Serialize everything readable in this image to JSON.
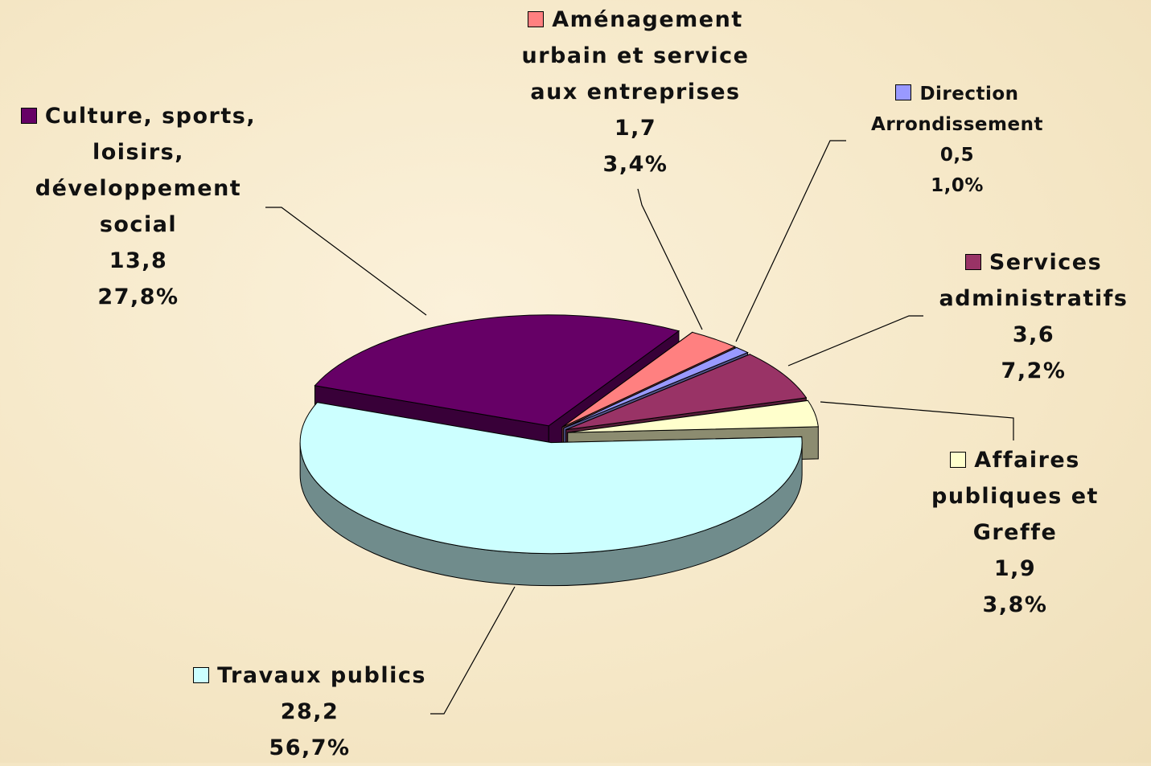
{
  "chart_data": {
    "type": "pie",
    "categories": [
      "Travaux publics",
      "Culture, sports, loisirs, développement social",
      "Aménagement urbain et service aux entreprises",
      "Direction Arrondissement",
      "Services administratifs",
      "Affaires publiques et Greffe"
    ],
    "values": [
      28.2,
      13.8,
      1.7,
      0.5,
      3.6,
      1.9
    ],
    "value_labels": [
      "28,2",
      "13,8",
      "1,7",
      "0,5",
      "3,6",
      "1,9"
    ],
    "percents": [
      56.7,
      27.8,
      3.4,
      1.0,
      7.2,
      3.8
    ],
    "percent_labels": [
      "56,7%",
      "27,8%",
      "3,4%",
      "1,0%",
      "7,2%",
      "3,8%"
    ],
    "colors": [
      "#ccffff",
      "#660066",
      "#ff8080",
      "#9999ff",
      "#993366",
      "#ffffcc"
    ]
  }
}
